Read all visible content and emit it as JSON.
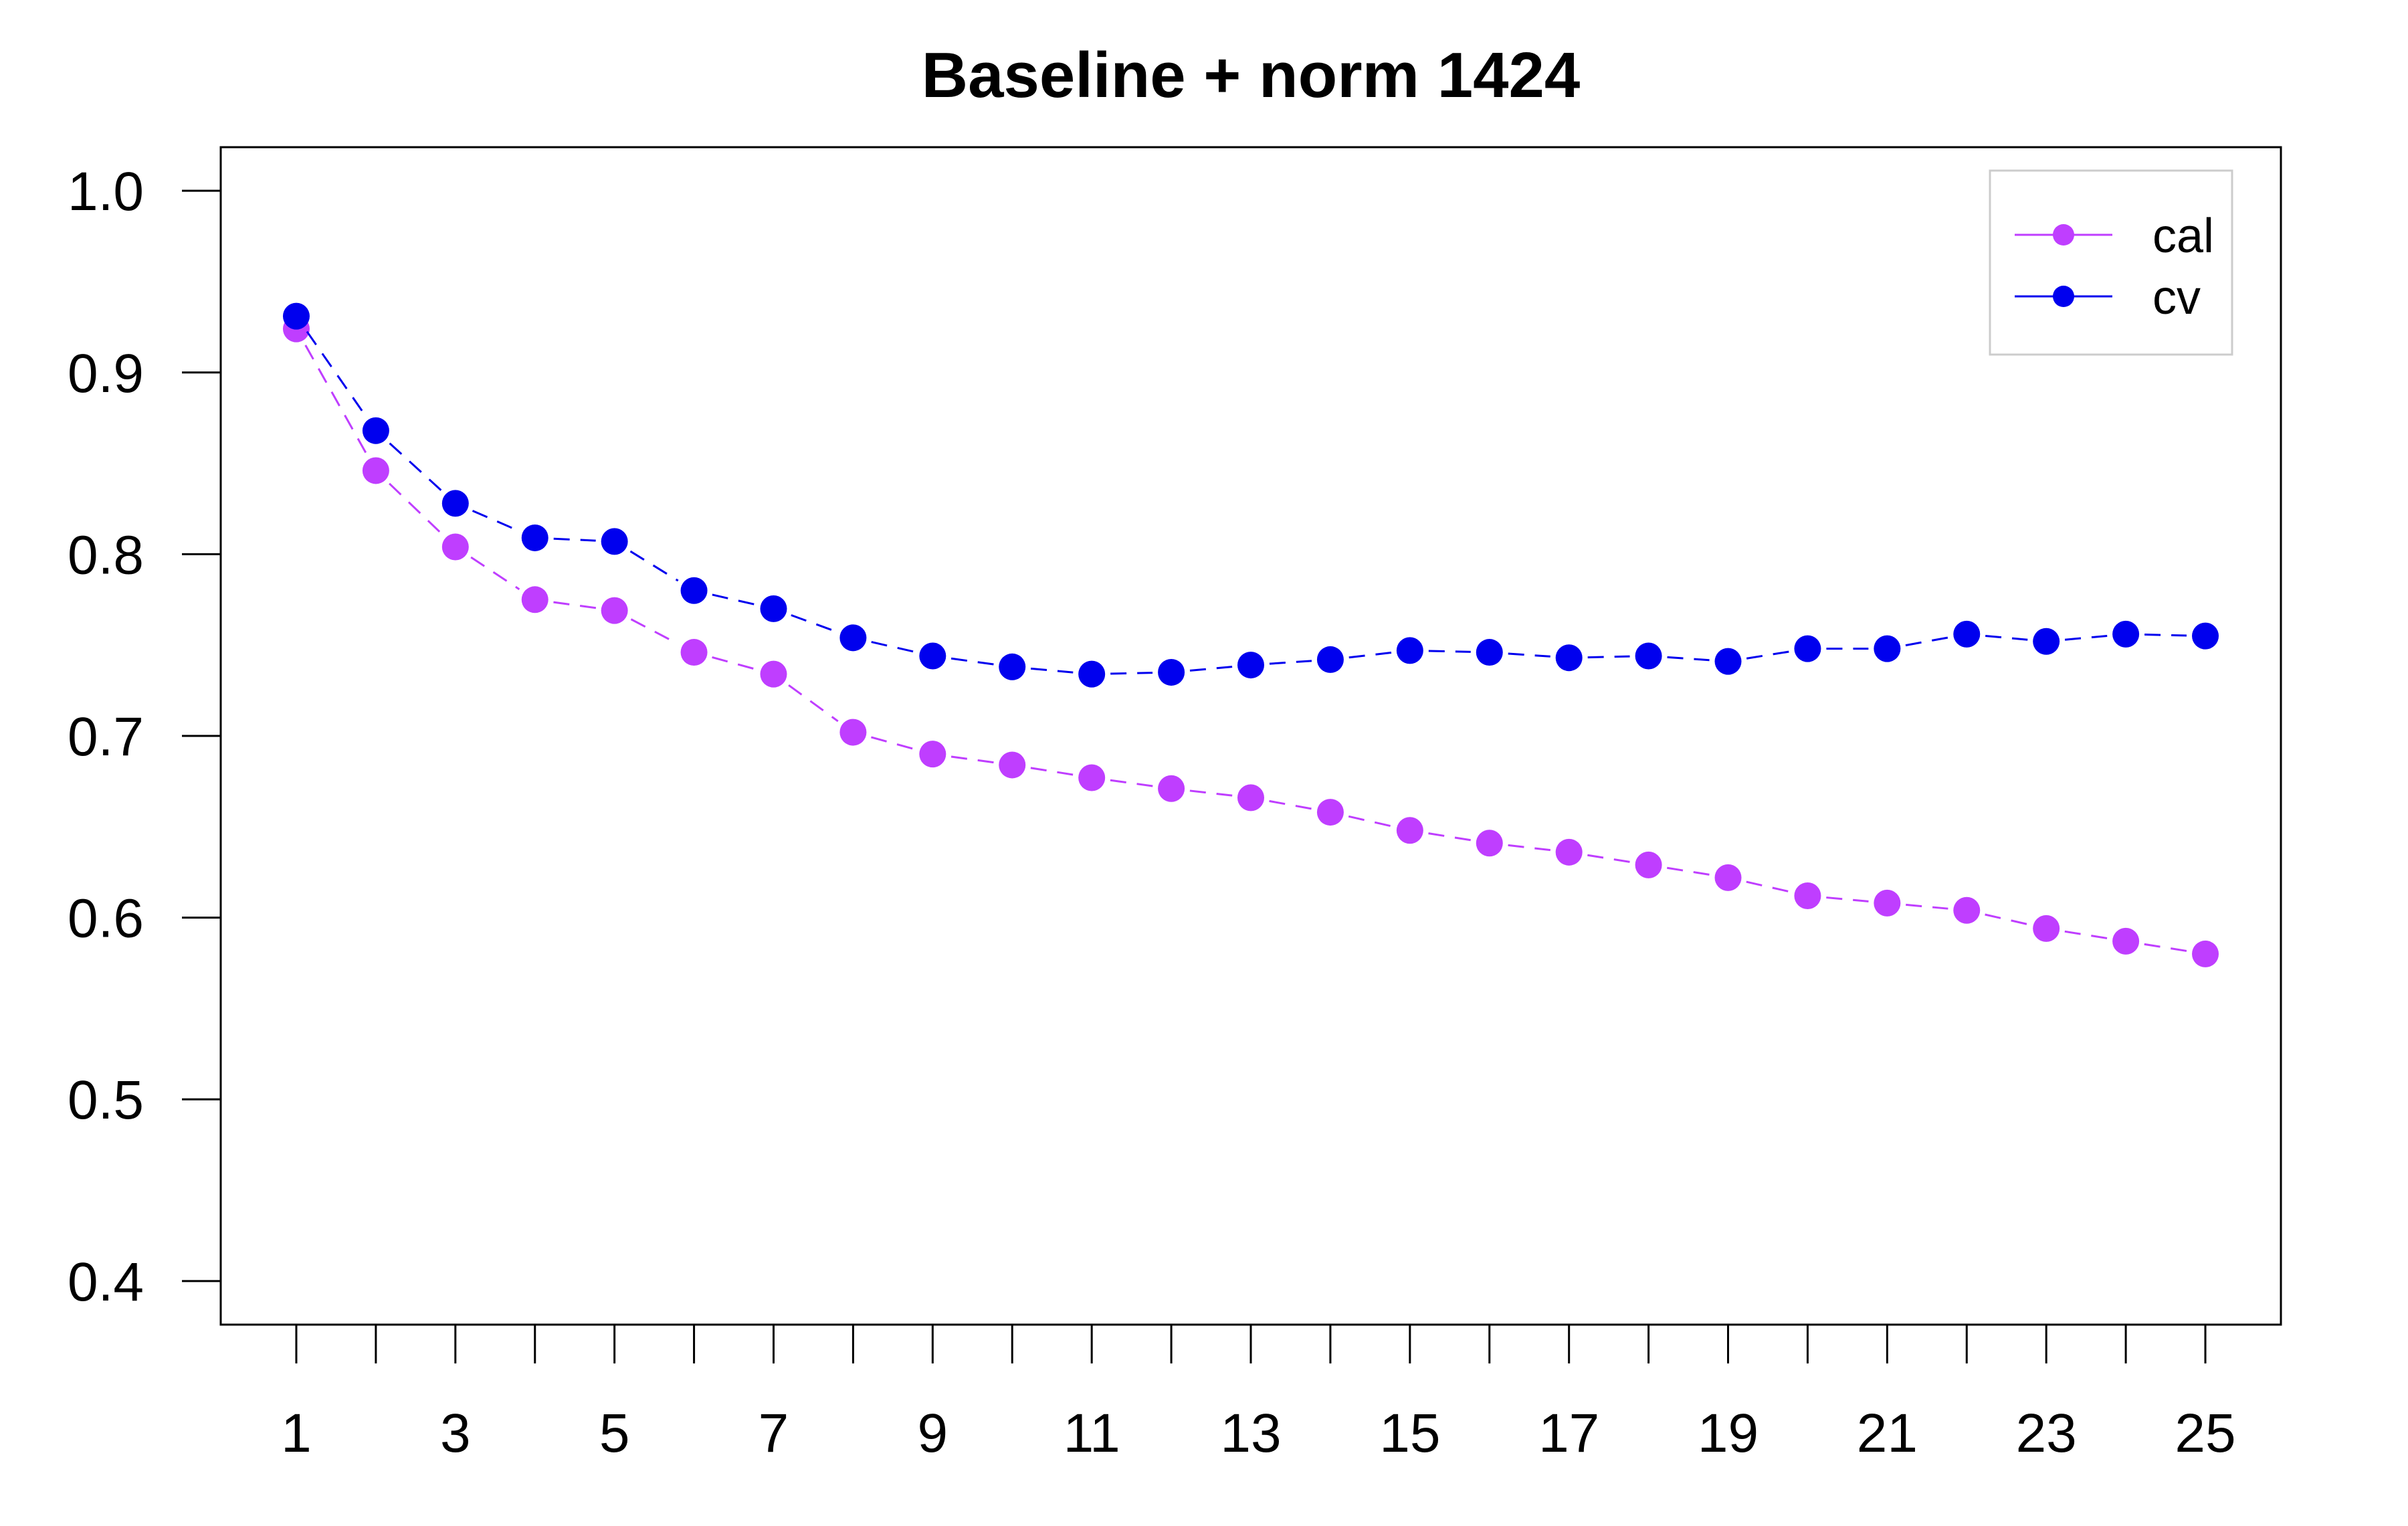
{
  "chart_data": {
    "type": "line",
    "title": "Baseline + norm 1424",
    "xlabel": "",
    "ylabel": "",
    "x": [
      1,
      2,
      3,
      4,
      5,
      6,
      7,
      8,
      9,
      10,
      11,
      12,
      13,
      14,
      15,
      16,
      17,
      18,
      19,
      20,
      21,
      22,
      23,
      24,
      25
    ],
    "xlim": [
      0.05,
      25.95
    ],
    "ylim": [
      0.376,
      1.024
    ],
    "x_tick_labels": [
      "1",
      "3",
      "5",
      "7",
      "9",
      "11",
      "13",
      "15",
      "17",
      "19",
      "21",
      "23",
      "25"
    ],
    "x_tick_marks": [
      1,
      2,
      3,
      4,
      5,
      6,
      7,
      8,
      9,
      10,
      11,
      12,
      13,
      14,
      15,
      16,
      17,
      18,
      19,
      20,
      21,
      22,
      23,
      24,
      25
    ],
    "y_ticks": [
      0.4,
      0.5,
      0.6,
      0.7,
      0.8,
      0.9,
      1.0
    ],
    "y_tick_labels": [
      "0.4",
      "0.5",
      "0.6",
      "0.7",
      "0.8",
      "0.9",
      "1.0"
    ],
    "grid": false,
    "legend_position": "top-right",
    "series": [
      {
        "name": "cal",
        "color": "#bf3eff",
        "line_style": "dashed",
        "values": [
          0.924,
          0.846,
          0.804,
          0.775,
          0.769,
          0.746,
          0.734,
          0.702,
          0.69,
          0.684,
          0.677,
          0.671,
          0.666,
          0.658,
          0.648,
          0.641,
          0.636,
          0.629,
          0.622,
          0.612,
          0.608,
          0.604,
          0.594,
          0.587,
          0.58
        ]
      },
      {
        "name": "cv",
        "color": "#0000ee",
        "line_style": "dashed",
        "values": [
          0.931,
          0.868,
          0.828,
          0.809,
          0.807,
          0.78,
          0.77,
          0.754,
          0.744,
          0.738,
          0.734,
          0.735,
          0.739,
          0.742,
          0.747,
          0.746,
          0.743,
          0.744,
          0.741,
          0.748,
          0.748,
          0.756,
          0.752,
          0.756,
          0.755
        ]
      }
    ]
  }
}
